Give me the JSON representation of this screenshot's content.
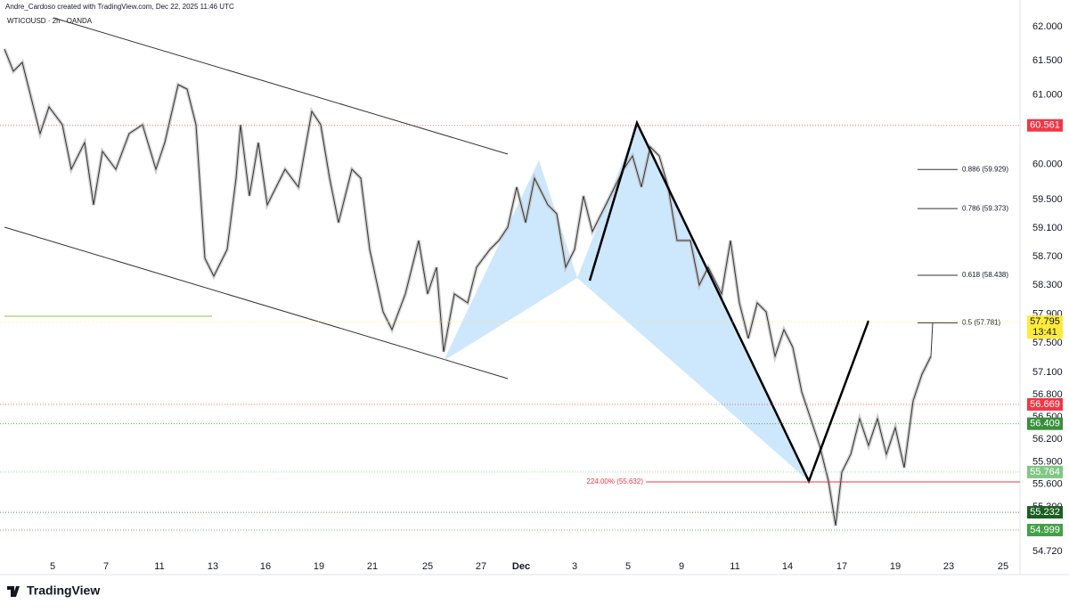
{
  "header": {
    "credit": "Andre_Cardoso created with TradingView.com, Dec 22, 2025 11:46 UTC",
    "symbol": "WTICOUSD · 2h · OANDA"
  },
  "price_axis": [
    "62.000",
    "61.500",
    "61.000",
    "60.000",
    "59.500",
    "59.100",
    "58.700",
    "58.300",
    "57.900",
    "57.500",
    "57.100",
    "56.800",
    "56.500",
    "56.200",
    "55.900",
    "55.600",
    "55.300",
    "54.720"
  ],
  "time_axis": [
    "5",
    "7",
    "11",
    "13",
    "16",
    "19",
    "21",
    "25",
    "27",
    "Dec",
    "3",
    "5",
    "9",
    "11",
    "14",
    "17",
    "19",
    "23",
    "25"
  ],
  "price_tags": [
    {
      "label": "60.561",
      "color": "#f23645"
    },
    {
      "label": "57.795",
      "sub": "13:41",
      "color": "#ffeb3b"
    },
    {
      "label": "56.669",
      "color": "#f23645"
    },
    {
      "label": "56.409",
      "color": "#388e3c"
    },
    {
      "label": "55.764",
      "color": "#81c784"
    },
    {
      "label": "55.232",
      "color": "#1b5e20"
    },
    {
      "label": "54.999",
      "color": "#43a047"
    }
  ],
  "fib_levels": [
    "0.886 (59.929)",
    "0.786 (59.373)",
    "0.618 (58.438)",
    "0.5 (57.781)"
  ],
  "extension_label": "224.00% (55.632)",
  "footer": {
    "brand": "TradingView"
  }
}
